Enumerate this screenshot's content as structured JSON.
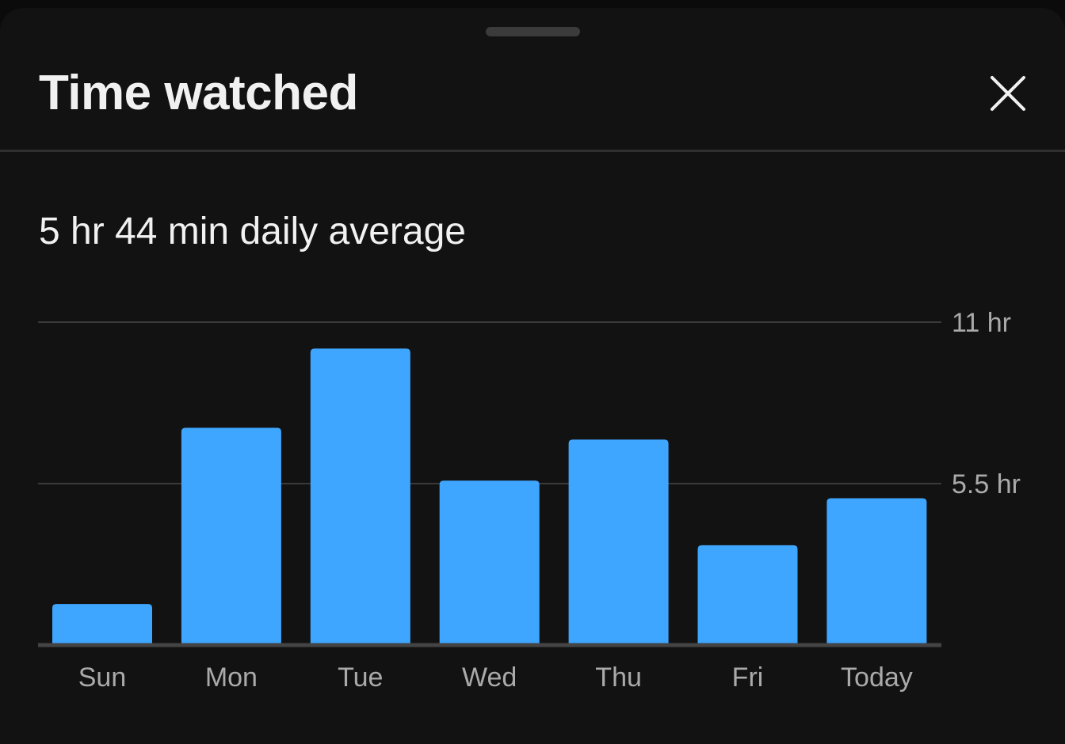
{
  "sheet": {
    "title": "Time watched",
    "close_icon": "close-icon",
    "daily_average": "5 hr 44 min daily average"
  },
  "colors": {
    "bar": "#3ea6ff",
    "background": "#121212",
    "grid": "#3a3a3a",
    "text": "#f1f1f1",
    "muted_text": "#aaaaaa"
  },
  "chart_data": {
    "type": "bar",
    "categories": [
      "Sun",
      "Mon",
      "Tue",
      "Wed",
      "Thu",
      "Fri",
      "Today"
    ],
    "values": [
      1.4,
      7.4,
      10.1,
      5.6,
      7.0,
      3.4,
      5.0
    ],
    "ylim": [
      0,
      11
    ],
    "yticks": [
      {
        "value": 5.5,
        "label": "5.5 hr"
      },
      {
        "value": 11,
        "label": "11 hr"
      }
    ],
    "grid": true,
    "unit": "hr"
  }
}
